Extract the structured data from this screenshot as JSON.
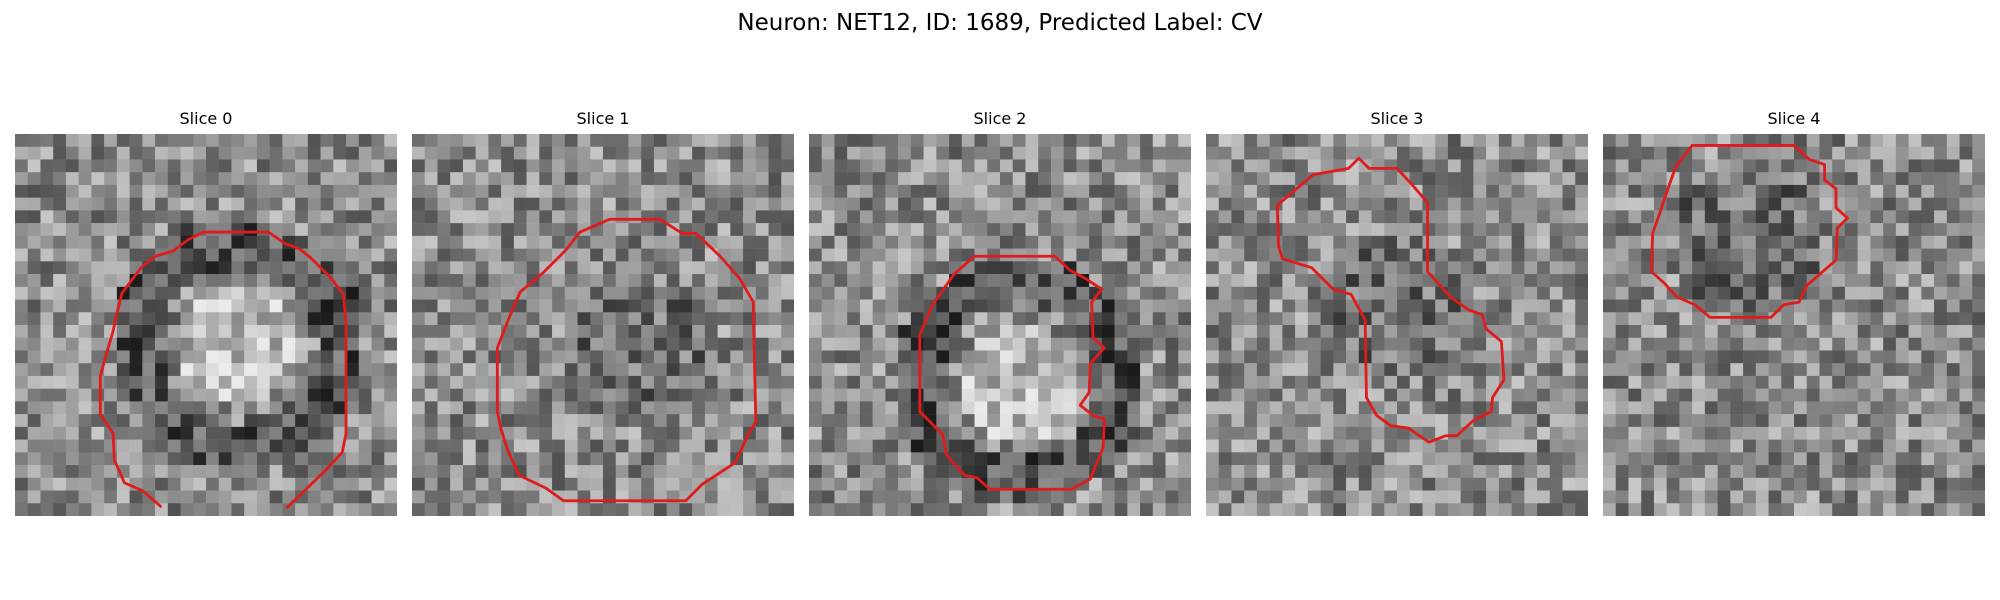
{
  "figure": {
    "title": "Neuron: NET12, ID: 1689, Predicted Label: CV",
    "contour_color": "#e01b1b"
  },
  "panels": [
    {
      "title": "Slice 0",
      "seed": 11,
      "dark_ring": true,
      "bright_core": true
    },
    {
      "title": "Slice 1",
      "seed": 23,
      "dark_ring": false,
      "bright_core": false
    },
    {
      "title": "Slice 2",
      "seed": 37,
      "dark_ring": true,
      "bright_core": true
    },
    {
      "title": "Slice 3",
      "seed": 41,
      "dark_ring": false,
      "bright_core": false
    },
    {
      "title": "Slice 4",
      "seed": 59,
      "dark_ring": false,
      "bright_core": false
    }
  ]
}
